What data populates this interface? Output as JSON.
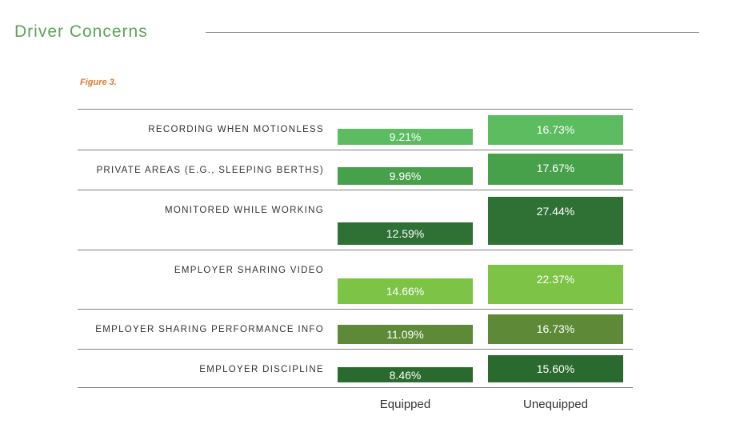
{
  "header": {
    "title": "Driver Concerns",
    "figure_label": "Figure 3."
  },
  "chart_data": {
    "type": "bar",
    "categories": [
      "Recording when motionless",
      "Private areas (e.g., sleeping berths)",
      "Monitored while working",
      "Employer sharing video",
      "Employer sharing performance info",
      "Employer discipline"
    ],
    "series": [
      {
        "name": "Equipped",
        "values": [
          9.21,
          9.96,
          12.59,
          14.66,
          11.09,
          8.46
        ],
        "labels": [
          "9.21%",
          "9.96%",
          "12.59%",
          "14.66%",
          "11.09%",
          "8.46%"
        ]
      },
      {
        "name": "Unequipped",
        "values": [
          16.73,
          17.67,
          27.44,
          22.37,
          16.73,
          15.6
        ],
        "labels": [
          "16.73%",
          "17.67%",
          "27.44%",
          "22.37%",
          "16.73%",
          "15.60%"
        ]
      }
    ],
    "colors": [
      "#5bbd5f",
      "#47a04a",
      "#2f7035",
      "#7cc346",
      "#5e8a38",
      "#2a6a2f"
    ]
  }
}
